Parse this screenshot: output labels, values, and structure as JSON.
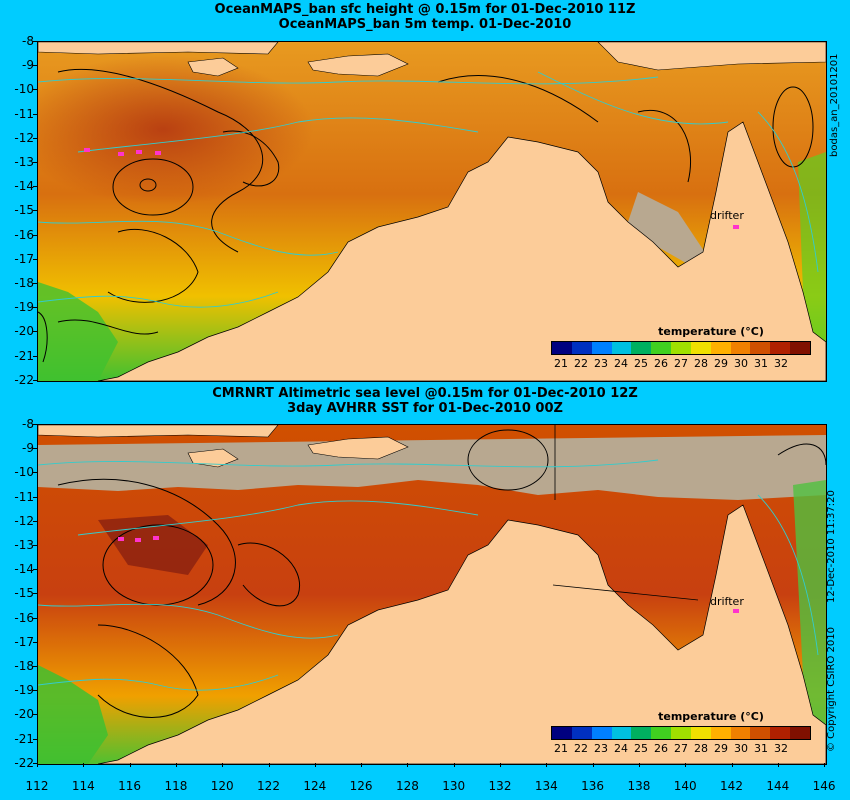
{
  "top_panel": {
    "title_line1": "OceanMAPS_ban sfc height @ 0.15m for 01-Dec-2010 11Z",
    "title_line2": "OceanMAPS_ban 5m temp. 01-Dec-2010",
    "side_label": "bodas_an_20101201",
    "drifter_label": "drifter",
    "legend_title": "temperature (°C)"
  },
  "bottom_panel": {
    "title_line1": "CMRNRT Altimetric sea level  @0.15m  for 01-Dec-2010 12Z",
    "title_line2": "3day AVHRR SST for 01-Dec-2010 00Z",
    "side_label": "12-Dec-2010 11:37:20",
    "copyright": "© Copyright CSIRO 2010",
    "drifter_label": "drifter",
    "legend_title": "temperature (°C)"
  },
  "y_axis_labels": [
    "-8",
    "-9",
    "-10",
    "-11",
    "-12",
    "-13",
    "-14",
    "-15",
    "-16",
    "-17",
    "-18",
    "-19",
    "-20",
    "-21",
    "-22"
  ],
  "x_axis_labels": [
    "112",
    "114",
    "116",
    "118",
    "120",
    "122",
    "124",
    "126",
    "128",
    "130",
    "132",
    "134",
    "136",
    "138",
    "140",
    "142",
    "144",
    "146"
  ],
  "legend_ticks": [
    "21",
    "22",
    "23",
    "24",
    "25",
    "26",
    "27",
    "28",
    "29",
    "30",
    "31",
    "32"
  ],
  "colors": {
    "background": "#00ccff",
    "land": "#fccc99",
    "cloud_mask": "#b8a890",
    "contour_height": "#000000",
    "contour_bathymetry": "#33cccc",
    "drifter": "#ff33cc",
    "colorbar": [
      "#000080",
      "#0030c0",
      "#0080ff",
      "#00c0e0",
      "#00b060",
      "#40d020",
      "#a0e000",
      "#f0e000",
      "#ffb000",
      "#f08000",
      "#d05000",
      "#b02000",
      "#801000"
    ]
  },
  "map": {
    "region_lon_range": [
      112,
      146
    ],
    "region_lat_range": [
      -22,
      -8
    ]
  }
}
